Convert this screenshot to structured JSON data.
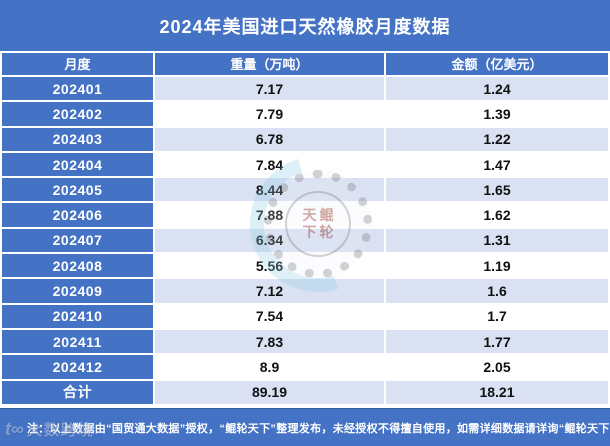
{
  "title": "2024年美国进口天然橡胶月度数据",
  "table": {
    "columns": [
      {
        "key": "month",
        "label": "月度"
      },
      {
        "key": "weight",
        "label": "重量（万吨）"
      },
      {
        "key": "amount",
        "label": "金额（亿美元）"
      }
    ],
    "rows": [
      [
        "202401",
        "7.17",
        "1.24"
      ],
      [
        "202402",
        "7.79",
        "1.39"
      ],
      [
        "202403",
        "6.78",
        "1.22"
      ],
      [
        "202404",
        "7.84",
        "1.47"
      ],
      [
        "202405",
        "8.44",
        "1.65"
      ],
      [
        "202406",
        "7.88",
        "1.62"
      ],
      [
        "202407",
        "6.34",
        "1.31"
      ],
      [
        "202408",
        "5.56",
        "1.19"
      ],
      [
        "202409",
        "7.12",
        "1.6"
      ],
      [
        "202410",
        "7.54",
        "1.7"
      ],
      [
        "202411",
        "7.83",
        "1.77"
      ],
      [
        "202412",
        "8.9",
        "2.05"
      ]
    ],
    "total_row": [
      "合计",
      "89.19",
      "18.21"
    ]
  },
  "note": "注：以上数据由“国贸通大数据”授权，“鲲轮天下”整理发布，未经授权不得擅自使用，如需详细数据请详询“鲲轮天下”",
  "watermarks": {
    "stamp_text_top": "天鲲",
    "stamp_text_bottom": "下轮",
    "corner_logo_icon_glyph": "t∞",
    "corner_logo_text": "大数跨境"
  },
  "colors": {
    "primary_blue": "#4472C4",
    "row_stripe": "#D9E1F2",
    "header_text": "#FFFFFF",
    "cell_text": "#111111"
  },
  "chart_data": {
    "type": "table",
    "title": "2024年美国进口天然橡胶月度数据",
    "columns": [
      "月度",
      "重量（万吨）",
      "金额（亿美元）"
    ],
    "categories": [
      "202401",
      "202402",
      "202403",
      "202404",
      "202405",
      "202406",
      "202407",
      "202408",
      "202409",
      "202410",
      "202411",
      "202412"
    ],
    "series": [
      {
        "name": "重量（万吨）",
        "values": [
          7.17,
          7.79,
          6.78,
          7.84,
          8.44,
          7.88,
          6.34,
          5.56,
          7.12,
          7.54,
          7.83,
          8.9
        ]
      },
      {
        "name": "金额（亿美元）",
        "values": [
          1.24,
          1.39,
          1.22,
          1.47,
          1.65,
          1.62,
          1.31,
          1.19,
          1.6,
          1.7,
          1.77,
          2.05
        ]
      }
    ],
    "totals": {
      "重量（万吨）": 89.19,
      "金额（亿美元）": 18.21,
      "label": "合计"
    }
  }
}
